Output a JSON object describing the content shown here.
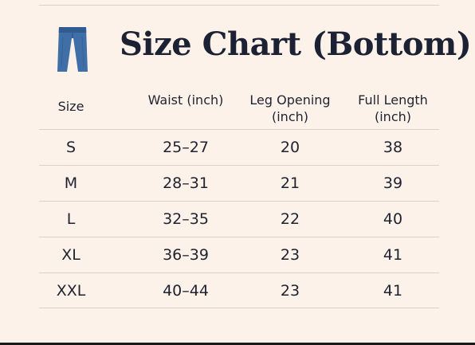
{
  "title": "Size Chart (Bottom)",
  "icon": "pants-icon",
  "colors": {
    "background": "#fcf2e9",
    "text": "#1c2233",
    "denim": "#3f6fa6",
    "rule": "#d9d2ca"
  },
  "table": {
    "headers": {
      "size": "Size",
      "waist": "Waist (inch)",
      "leg_line1": "Leg Opening",
      "leg_line2": "(inch)",
      "length_line1": "Full Length",
      "length_line2": "(inch)"
    },
    "rows": [
      {
        "size": "S",
        "waist": "25–27",
        "leg": "20",
        "length": "38"
      },
      {
        "size": "M",
        "waist": "28–31",
        "leg": "21",
        "length": "39"
      },
      {
        "size": "L",
        "waist": "32–35",
        "leg": "22",
        "length": "40"
      },
      {
        "size": "XL",
        "waist": "36–39",
        "leg": "23",
        "length": "41"
      },
      {
        "size": "XXL",
        "waist": "40–44",
        "leg": "23",
        "length": "41"
      }
    ]
  }
}
